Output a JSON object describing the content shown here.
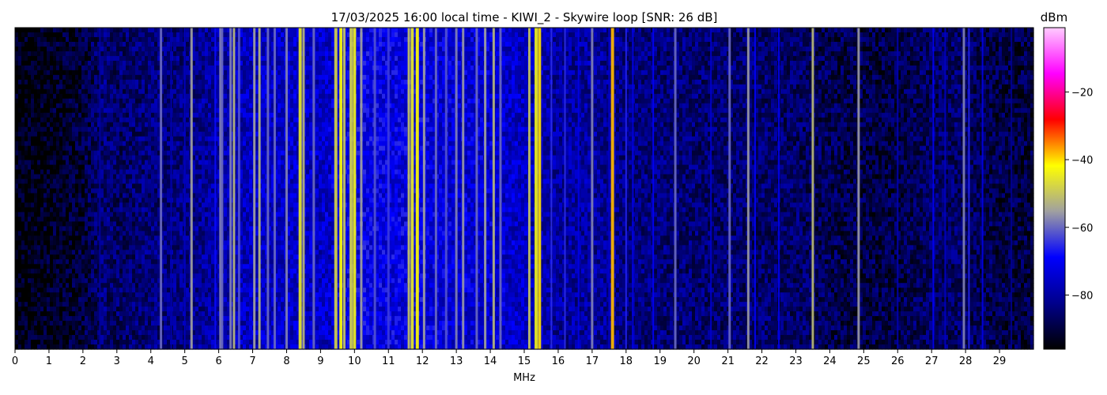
{
  "chart_data": {
    "type": "heatmap",
    "title": "17/03/2025 16:00 local time - KIWI_2 - Skywire loop [SNR: 26 dB]",
    "xlabel": "MHz",
    "ylabel": "",
    "xlim": [
      0,
      30
    ],
    "x_ticks": [
      0,
      1,
      2,
      3,
      4,
      5,
      6,
      7,
      8,
      9,
      10,
      11,
      12,
      13,
      14,
      15,
      16,
      17,
      18,
      19,
      20,
      21,
      22,
      23,
      24,
      25,
      26,
      27,
      28,
      29
    ],
    "y_ticks": [],
    "colorbar": {
      "label": "dBm",
      "range": [
        -96,
        -1
      ],
      "ticks": [
        -20,
        -40,
        -60,
        -80
      ],
      "colors": [
        "#000000",
        "#00008b",
        "#0000ff",
        "#a0a0a0",
        "#ffff00",
        "#ff0000",
        "#ff00ff",
        "#ffccff"
      ]
    },
    "noise_floor_dbm": [
      [
        0,
        -95
      ],
      [
        1,
        -93
      ],
      [
        2,
        -91
      ],
      [
        2.6,
        -84
      ],
      [
        3,
        -86
      ],
      [
        4,
        -84
      ],
      [
        5,
        -83
      ],
      [
        6,
        -79
      ],
      [
        7,
        -76
      ],
      [
        8,
        -75
      ],
      [
        9,
        -76
      ],
      [
        10,
        -71
      ],
      [
        11,
        -72
      ],
      [
        12,
        -72
      ],
      [
        13,
        -74
      ],
      [
        14,
        -74
      ],
      [
        15,
        -76
      ],
      [
        16,
        -80
      ],
      [
        17,
        -80
      ],
      [
        18,
        -83
      ],
      [
        19,
        -84
      ],
      [
        20,
        -85
      ],
      [
        21,
        -85
      ],
      [
        22,
        -85
      ],
      [
        23,
        -86
      ],
      [
        24,
        -88
      ],
      [
        25,
        -89
      ],
      [
        26,
        -89
      ],
      [
        27,
        -86
      ],
      [
        28,
        -86
      ],
      [
        29,
        -89
      ],
      [
        30,
        -90
      ]
    ],
    "signal_lines": [
      {
        "mhz": 2.5,
        "dbm": -80
      },
      {
        "mhz": 4.3,
        "dbm": -60
      },
      {
        "mhz": 4.6,
        "dbm": -78
      },
      {
        "mhz": 5.0,
        "dbm": -76
      },
      {
        "mhz": 5.2,
        "dbm": -55
      },
      {
        "mhz": 5.9,
        "dbm": -68
      },
      {
        "mhz": 6.05,
        "dbm": -58
      },
      {
        "mhz": 6.1,
        "dbm": -60
      },
      {
        "mhz": 6.35,
        "dbm": -58
      },
      {
        "mhz": 6.45,
        "dbm": -52
      },
      {
        "mhz": 6.6,
        "dbm": -62
      },
      {
        "mhz": 7.05,
        "dbm": -55
      },
      {
        "mhz": 7.2,
        "dbm": -52
      },
      {
        "mhz": 7.45,
        "dbm": -60
      },
      {
        "mhz": 7.65,
        "dbm": -60
      },
      {
        "mhz": 8.0,
        "dbm": -58
      },
      {
        "mhz": 8.4,
        "dbm": -45
      },
      {
        "mhz": 8.5,
        "dbm": -52
      },
      {
        "mhz": 8.8,
        "dbm": -60
      },
      {
        "mhz": 9.45,
        "dbm": -48
      },
      {
        "mhz": 9.6,
        "dbm": -42
      },
      {
        "mhz": 9.7,
        "dbm": -50
      },
      {
        "mhz": 9.9,
        "dbm": -48
      },
      {
        "mhz": 10.0,
        "dbm": -44
      },
      {
        "mhz": 10.2,
        "dbm": -55
      },
      {
        "mhz": 10.6,
        "dbm": -62
      },
      {
        "mhz": 11.0,
        "dbm": -64
      },
      {
        "mhz": 11.6,
        "dbm": -50
      },
      {
        "mhz": 11.7,
        "dbm": -45
      },
      {
        "mhz": 11.85,
        "dbm": -42
      },
      {
        "mhz": 12.05,
        "dbm": -55
      },
      {
        "mhz": 12.4,
        "dbm": -60
      },
      {
        "mhz": 12.7,
        "dbm": -62
      },
      {
        "mhz": 13.0,
        "dbm": -58
      },
      {
        "mhz": 13.2,
        "dbm": -56
      },
      {
        "mhz": 13.6,
        "dbm": -60
      },
      {
        "mhz": 13.85,
        "dbm": -55
      },
      {
        "mhz": 14.1,
        "dbm": -52
      },
      {
        "mhz": 14.3,
        "dbm": -60
      },
      {
        "mhz": 15.15,
        "dbm": -50
      },
      {
        "mhz": 15.35,
        "dbm": -44
      },
      {
        "mhz": 15.45,
        "dbm": -40
      },
      {
        "mhz": 15.8,
        "dbm": -65
      },
      {
        "mhz": 16.2,
        "dbm": -65
      },
      {
        "mhz": 16.6,
        "dbm": -72
      },
      {
        "mhz": 17.0,
        "dbm": -58
      },
      {
        "mhz": 17.5,
        "dbm": -75
      },
      {
        "mhz": 17.6,
        "dbm": -38
      },
      {
        "mhz": 18.0,
        "dbm": -66
      },
      {
        "mhz": 18.2,
        "dbm": -72
      },
      {
        "mhz": 18.8,
        "dbm": -70
      },
      {
        "mhz": 19.45,
        "dbm": -60
      },
      {
        "mhz": 20.5,
        "dbm": -75
      },
      {
        "mhz": 21.05,
        "dbm": -60
      },
      {
        "mhz": 21.6,
        "dbm": -56
      },
      {
        "mhz": 21.8,
        "dbm": -70
      },
      {
        "mhz": 22.5,
        "dbm": -72
      },
      {
        "mhz": 23.5,
        "dbm": -52
      },
      {
        "mhz": 24.85,
        "dbm": -56
      },
      {
        "mhz": 26.0,
        "dbm": -78
      },
      {
        "mhz": 27.05,
        "dbm": -70
      },
      {
        "mhz": 27.4,
        "dbm": -76
      },
      {
        "mhz": 27.95,
        "dbm": -58
      },
      {
        "mhz": 28.1,
        "dbm": -66
      },
      {
        "mhz": 28.5,
        "dbm": -72
      },
      {
        "mhz": 29.35,
        "dbm": -82
      }
    ]
  }
}
